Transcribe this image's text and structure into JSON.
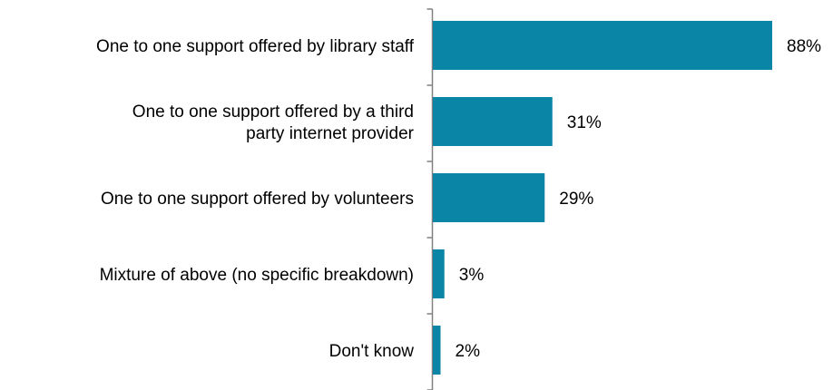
{
  "chart_data": {
    "type": "bar",
    "orientation": "horizontal",
    "categories": [
      [
        "One to one support offered by library staff"
      ],
      [
        "One to one support offered by a third",
        "party internet provider"
      ],
      [
        "One to one support offered by volunteers"
      ],
      [
        "Mixture of above (no specific breakdown)"
      ],
      [
        "Don't know"
      ]
    ],
    "values": [
      88,
      31,
      29,
      3,
      2
    ],
    "value_labels": [
      "88%",
      "31%",
      "29%",
      "3%",
      "2%"
    ],
    "unit": "%",
    "xlim": [
      0,
      100
    ],
    "bar_color": "#0a85a6",
    "axis_color": "#808080",
    "title": "",
    "xlabel": "",
    "ylabel": "",
    "grid": false,
    "legend": "none"
  }
}
